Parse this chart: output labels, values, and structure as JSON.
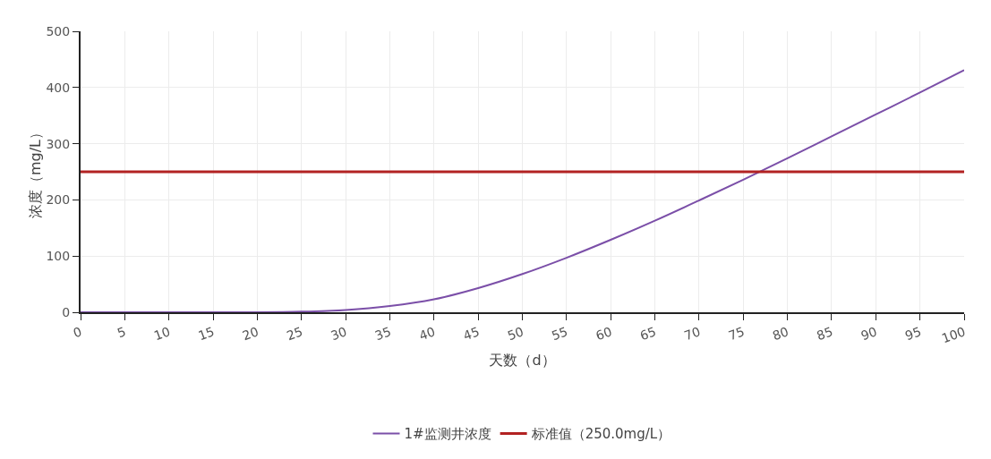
{
  "chart_data": {
    "type": "line",
    "xlabel": "天数（d）",
    "ylabel": "浓度（mg/L）",
    "x": [
      0,
      5,
      10,
      15,
      20,
      25,
      30,
      35,
      40,
      45,
      50,
      55,
      60,
      65,
      70,
      75,
      80,
      85,
      90,
      95,
      100
    ],
    "series": [
      {
        "name": "1#监测井浓度",
        "color": "#7b4fa8",
        "values": [
          0,
          0,
          0,
          0,
          0,
          1,
          4,
          11,
          23,
          43,
          68,
          97,
          129,
          163,
          199,
          236,
          274,
          313,
          352,
          391,
          431
        ]
      },
      {
        "name": "标准值（250.0mg/L）",
        "color": "#b22222",
        "x": [
          0,
          100
        ],
        "values": [
          250,
          250
        ]
      }
    ],
    "xlim": [
      0,
      100
    ],
    "xticks": [
      0,
      5,
      10,
      15,
      20,
      25,
      30,
      35,
      40,
      45,
      50,
      55,
      60,
      65,
      70,
      75,
      80,
      85,
      90,
      95,
      100
    ],
    "ylim": [
      0,
      500
    ],
    "yticks": [
      0,
      100,
      200,
      300,
      400,
      500
    ],
    "grid": true,
    "legend": "bottom",
    "marker": "none",
    "line_style": "solid"
  }
}
